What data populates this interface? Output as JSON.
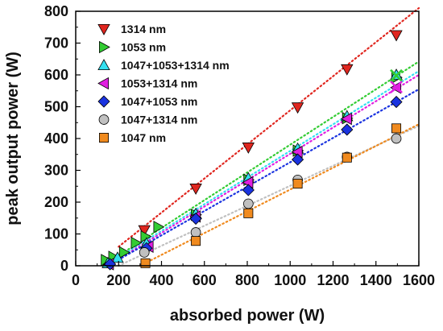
{
  "chart_data": {
    "type": "scatter",
    "xlabel": "absorbed power (W)",
    "ylabel": "peak output power (W)",
    "xlim": [
      0,
      1600
    ],
    "ylim": [
      0,
      800
    ],
    "xticks": [
      0,
      200,
      400,
      600,
      800,
      1000,
      1200,
      1400,
      1600
    ],
    "yticks": [
      0,
      100,
      200,
      300,
      400,
      500,
      600,
      700,
      800
    ],
    "legend_position": "top-left",
    "series": [
      {
        "name": "1314 nm",
        "marker": "triangle-down",
        "color": "#e0261f",
        "points": [
          [
            320,
            112
          ],
          [
            560,
            243
          ],
          [
            805,
            372
          ],
          [
            1035,
            498
          ],
          [
            1265,
            618
          ],
          [
            1495,
            725
          ]
        ],
        "fit": [
          [
            200,
            60
          ],
          [
            1600,
            810
          ]
        ]
      },
      {
        "name": "1053 nm",
        "marker": "triangle-right",
        "color": "#33cc33",
        "points": [
          [
            140,
            18
          ],
          [
            175,
            28
          ],
          [
            225,
            42
          ],
          [
            280,
            72
          ],
          [
            325,
            92
          ],
          [
            385,
            122
          ],
          [
            560,
            160
          ],
          [
            805,
            270
          ],
          [
            1035,
            362
          ],
          [
            1265,
            464
          ],
          [
            1495,
            592
          ]
        ],
        "fit": [
          [
            150,
            10
          ],
          [
            1600,
            642
          ]
        ]
      },
      {
        "name": "1047+1053+1314 nm",
        "marker": "triangle-up",
        "color": "#33e0f0",
        "points": [
          [
            150,
            8
          ],
          [
            195,
            25
          ],
          [
            330,
            70
          ],
          [
            560,
            163
          ],
          [
            805,
            275
          ],
          [
            1035,
            368
          ],
          [
            1265,
            470
          ],
          [
            1495,
            600
          ]
        ],
        "fit": [
          [
            150,
            5
          ],
          [
            1600,
            612
          ]
        ]
      },
      {
        "name": "1053+1314 nm",
        "marker": "triangle-left",
        "color": "#e020e0",
        "points": [
          [
            155,
            5
          ],
          [
            340,
            60
          ],
          [
            560,
            155
          ],
          [
            805,
            262
          ],
          [
            1035,
            358
          ],
          [
            1265,
            462
          ],
          [
            1495,
            560
          ]
        ],
        "fit": [
          [
            150,
            0
          ],
          [
            1600,
            600
          ]
        ]
      },
      {
        "name": "1047+1053 nm",
        "marker": "diamond",
        "color": "#1a33e0",
        "points": [
          [
            160,
            5
          ],
          [
            330,
            55
          ],
          [
            560,
            148
          ],
          [
            805,
            238
          ],
          [
            1035,
            334
          ],
          [
            1265,
            428
          ],
          [
            1495,
            515
          ]
        ],
        "fit": [
          [
            150,
            0
          ],
          [
            1600,
            555
          ]
        ]
      },
      {
        "name": "1047+1314 nm",
        "marker": "circle",
        "color": "#c0c0c0",
        "points": [
          [
            320,
            42
          ],
          [
            560,
            105
          ],
          [
            805,
            195
          ],
          [
            1035,
            270
          ],
          [
            1265,
            342
          ],
          [
            1495,
            400
          ]
        ],
        "fit": [
          [
            200,
            0
          ],
          [
            1600,
            440
          ]
        ]
      },
      {
        "name": "1047 nm",
        "marker": "square",
        "color": "#f08a1e",
        "points": [
          [
            325,
            8
          ],
          [
            560,
            78
          ],
          [
            805,
            165
          ],
          [
            1035,
            258
          ],
          [
            1265,
            340
          ],
          [
            1495,
            432
          ]
        ],
        "fit": [
          [
            300,
            0
          ],
          [
            1600,
            445
          ]
        ]
      }
    ],
    "special_markers": [
      {
        "marker": "x",
        "color": "#33cc33",
        "points": [
          [
            1495,
            598
          ]
        ]
      },
      {
        "marker": "x",
        "color": "#e020e0",
        "points": [
          [
            1495,
            562
          ]
        ]
      }
    ]
  }
}
